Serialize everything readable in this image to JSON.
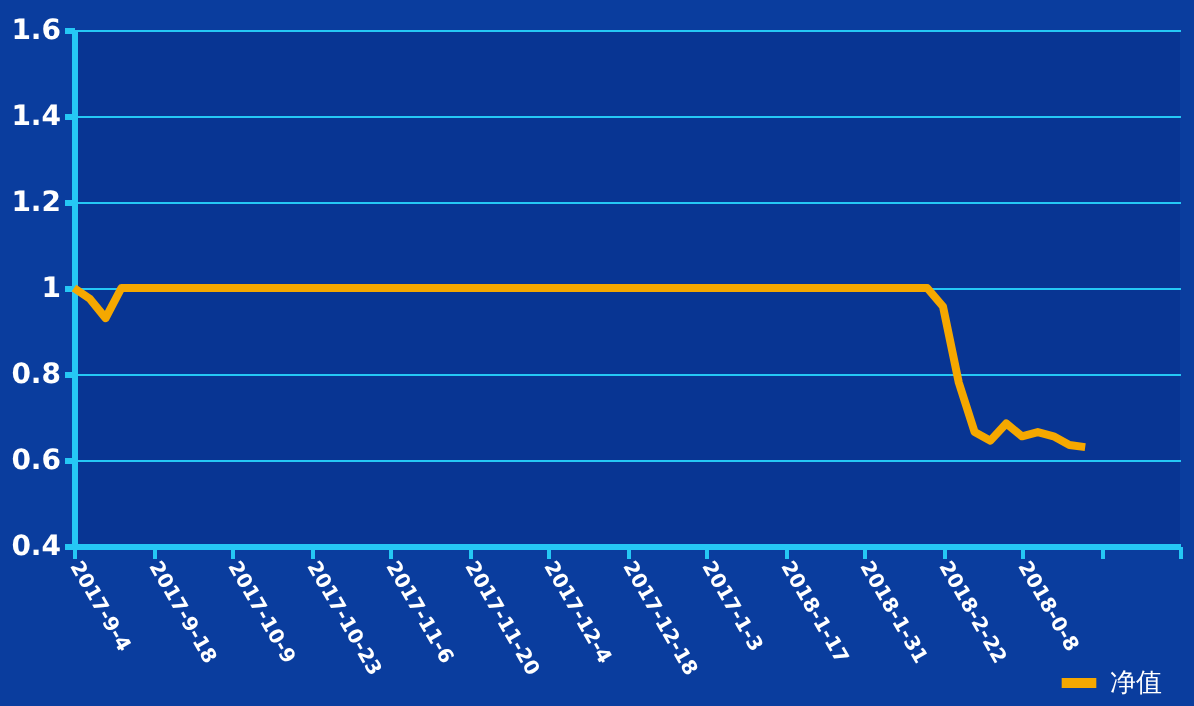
{
  "chart_data": {
    "type": "line",
    "categories": [
      "2017-9-4",
      null,
      null,
      null,
      null,
      "2017-9-18",
      null,
      null,
      null,
      null,
      "2017-10-9",
      null,
      null,
      null,
      null,
      "2017-10-23",
      null,
      null,
      null,
      null,
      "2017-11-6",
      null,
      null,
      null,
      null,
      "2017-11-20",
      null,
      null,
      null,
      null,
      "2017-12-4",
      null,
      null,
      null,
      null,
      "2017-12-18",
      null,
      null,
      null,
      null,
      "2017-1-3",
      null,
      null,
      null,
      null,
      "2018-1-17",
      null,
      null,
      null,
      null,
      "2018-1-31",
      null,
      null,
      null,
      null,
      "2018-2-22",
      null,
      null,
      null,
      null,
      "2018-0-8",
      null,
      null,
      null,
      null,
      null,
      null,
      null,
      null,
      null,
      null
    ],
    "series": [
      {
        "name": "净值",
        "color": "#f5a800",
        "values": [
          1.0,
          0.975,
          0.93,
          1.0,
          1.0,
          1.0,
          1.0,
          1.0,
          1.0,
          1.0,
          1.0,
          1.0,
          1.0,
          1.0,
          1.0,
          1.0,
          1.0,
          1.0,
          1.0,
          1.0,
          1.0,
          1.0,
          1.0,
          1.0,
          1.0,
          1.0,
          1.0,
          1.0,
          1.0,
          1.0,
          1.0,
          1.0,
          1.0,
          1.0,
          1.0,
          1.0,
          1.0,
          1.0,
          1.0,
          1.0,
          1.0,
          1.0,
          1.0,
          1.0,
          1.0,
          1.0,
          1.0,
          1.0,
          1.0,
          1.0,
          1.0,
          1.0,
          1.0,
          1.0,
          1.0,
          0.957,
          0.78,
          0.665,
          0.645,
          0.685,
          0.655,
          0.665,
          0.655,
          0.635,
          0.63,
          null,
          null,
          null,
          null,
          null,
          null
        ]
      }
    ],
    "ylim": [
      0.4,
      1.6
    ],
    "yticks": [
      0.4,
      0.6,
      0.8,
      1,
      1.2,
      1.4,
      1.6
    ],
    "grid": "y",
    "legend": "bottom right",
    "line_style": "solid",
    "marker": "none"
  }
}
